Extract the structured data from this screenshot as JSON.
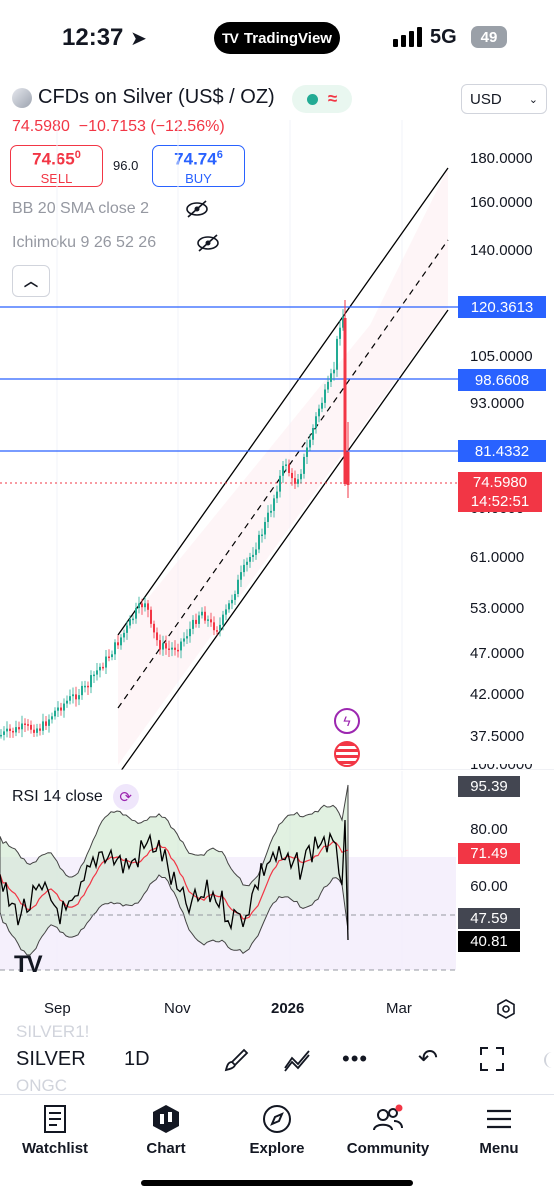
{
  "status_bar": {
    "time": "12:37",
    "app_pill": "TradingView",
    "network": "5G",
    "battery": "49"
  },
  "header": {
    "title": "CFDs on Silver (US$ / OZ)",
    "currency": "USD",
    "last_price": "74.5980",
    "change": "−10.7153",
    "change_pct": "(−12.56%)"
  },
  "order": {
    "sell_price": "74.65",
    "sell_sup": "0",
    "sell_label": "SELL",
    "spread": "96.0",
    "buy_price": "74.74",
    "buy_sup": "6",
    "buy_label": "BUY"
  },
  "indicators": {
    "bb": "BB 20 SMA close 2",
    "ichimoku": "Ichimoku 9 26 52 26",
    "rsi": "RSI 14 close"
  },
  "price_axis": [
    "180.0000",
    "160.0000",
    "140.0000",
    "105.0000",
    "93.0000",
    "69.0000",
    "61.0000",
    "53.0000",
    "47.0000",
    "42.0000",
    "37.5000"
  ],
  "axis_partial": "100.0000",
  "levels": {
    "l1": "120.3613",
    "l2": "98.6608",
    "l3": "81.4332"
  },
  "current": {
    "price": "74.5980",
    "countdown": "14:52:51"
  },
  "rsi_axis": {
    "top": "95.39",
    "l80": "80.00",
    "now": "71.49",
    "l60": "60.00",
    "mid": "47.59",
    "low": "40.81"
  },
  "time_axis": {
    "sep": "Sep",
    "nov": "Nov",
    "year": "2026",
    "mar": "Mar"
  },
  "toolbar": {
    "symbol": "SILVER",
    "timeframe": "1D",
    "ghost_top": "SILVER1!",
    "ghost_bottom": "ONGC"
  },
  "tabs": {
    "watchlist": "Watchlist",
    "chart": "Chart",
    "explore": "Explore",
    "community": "Community",
    "menu": "Menu"
  },
  "colors": {
    "up": "#22ab94",
    "down": "#f23645",
    "accent": "#2962ff"
  }
}
